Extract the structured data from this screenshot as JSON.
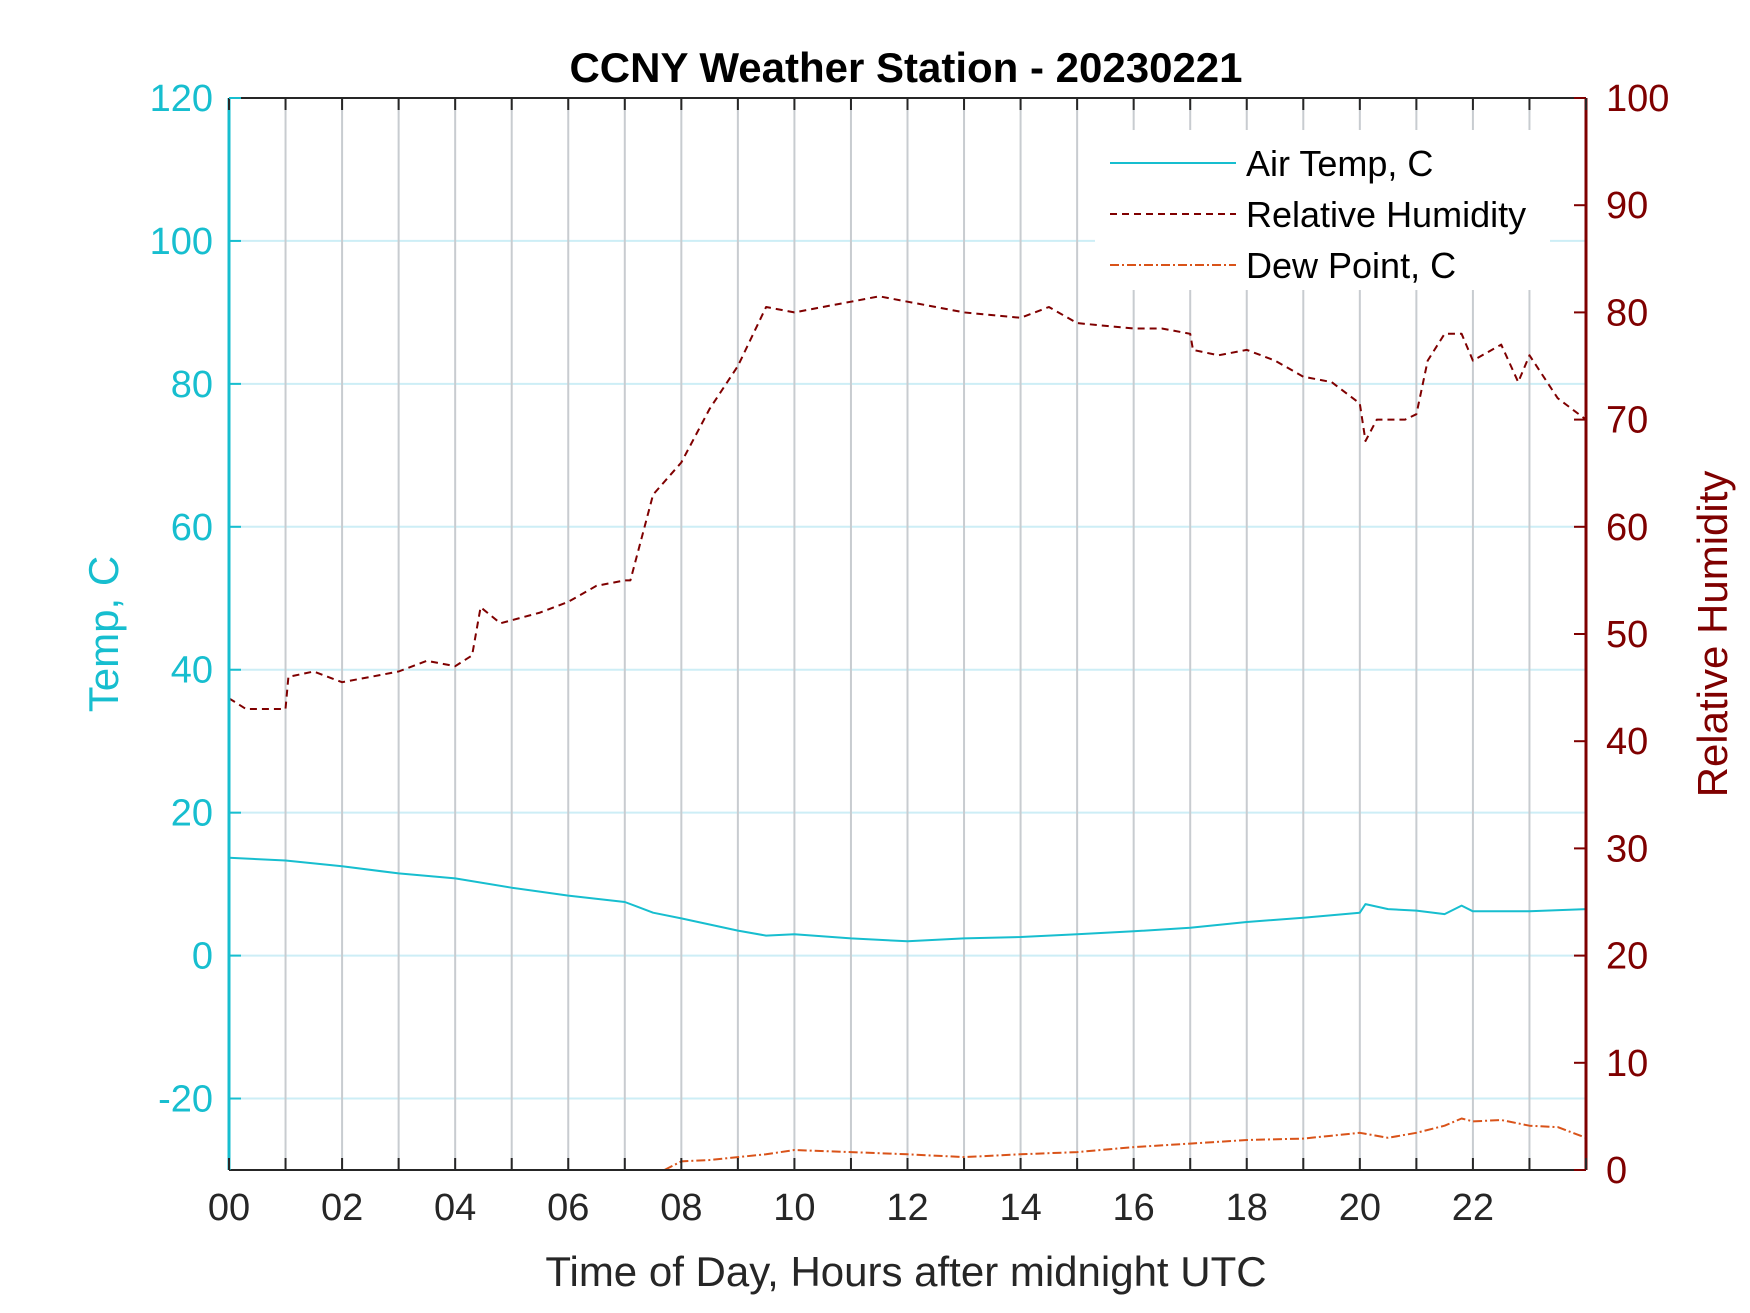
{
  "chart_data": {
    "type": "line",
    "title": "CCNY Weather Station - 20230221",
    "xlabel": "Time of Day, Hours after midnight UTC",
    "ylabel_left": "Temp, C",
    "ylabel_right": "Relative Humidity",
    "xlim": [
      0,
      24
    ],
    "ylim_left": [
      -30,
      120
    ],
    "ylim_right": [
      0,
      100
    ],
    "x_ticks": [
      0,
      2,
      4,
      6,
      8,
      10,
      12,
      14,
      16,
      18,
      20,
      22
    ],
    "x_tick_labels": [
      "00",
      "02",
      "04",
      "06",
      "08",
      "10",
      "12",
      "14",
      "16",
      "18",
      "20",
      "22"
    ],
    "y_left_ticks": [
      -20,
      0,
      20,
      40,
      60,
      80,
      100,
      120
    ],
    "y_left_tick_labels": [
      "-20",
      "0",
      "20",
      "40",
      "60",
      "80",
      "100",
      "120"
    ],
    "y_right_ticks": [
      0,
      10,
      20,
      30,
      40,
      50,
      60,
      70,
      80,
      90,
      100
    ],
    "y_right_tick_labels": [
      "0",
      "10",
      "20",
      "30",
      "40",
      "50",
      "60",
      "70",
      "80",
      "90",
      "100"
    ],
    "grid": "on",
    "legend_position": "top-right",
    "colors": {
      "air_temp": "#17becf",
      "humidity": "#7f0000",
      "dew_point": "#d95319",
      "left_axis": "#17becf",
      "right_axis": "#7f0000",
      "grid_vertical": "#c8ccd0",
      "grid_horizontal": "#cdeef6"
    },
    "series": [
      {
        "name": "Air Temp, C",
        "axis": "left",
        "style": "solid",
        "x": [
          0,
          1,
          2,
          3,
          4,
          5,
          6,
          7,
          7.5,
          8,
          9,
          9.5,
          10,
          11,
          12,
          13,
          14,
          15,
          16,
          17,
          18,
          19,
          20,
          20.1,
          20.5,
          21,
          21.5,
          21.8,
          22,
          23,
          24
        ],
        "y": [
          13.7,
          13.3,
          12.5,
          11.5,
          10.8,
          9.5,
          8.4,
          7.5,
          6.0,
          5.2,
          3.5,
          2.8,
          3.0,
          2.4,
          2.0,
          2.4,
          2.6,
          3.0,
          3.4,
          3.9,
          4.7,
          5.3,
          6.0,
          7.2,
          6.5,
          6.3,
          5.8,
          7.0,
          6.2,
          6.2,
          6.5
        ]
      },
      {
        "name": "Relative Humidity",
        "axis": "right",
        "style": "dashed",
        "x": [
          0,
          0.3,
          0.6,
          1,
          1.05,
          1.5,
          2,
          2.5,
          3,
          3.5,
          4,
          4.3,
          4.45,
          4.8,
          5.5,
          6,
          6.5,
          7,
          7.1,
          7.5,
          8,
          8.5,
          9,
          9.5,
          10,
          10.5,
          11,
          11.5,
          12,
          12.5,
          13,
          14,
          14.5,
          15,
          16,
          16.5,
          17,
          17.05,
          17.5,
          18,
          18.5,
          19,
          19.5,
          20,
          20.1,
          20.3,
          20.8,
          21,
          21.2,
          21.5,
          21.8,
          22,
          22.5,
          22.8,
          23,
          23.5,
          24
        ],
        "y": [
          44,
          43,
          43,
          43,
          46,
          46.5,
          45.5,
          46,
          46.5,
          47.5,
          47,
          48,
          52.5,
          51,
          52,
          53,
          54.5,
          55,
          55,
          63,
          66,
          71,
          75,
          80.5,
          80,
          80.5,
          81,
          81.5,
          81,
          80.5,
          80,
          79.5,
          80.5,
          79,
          78.5,
          78.5,
          78,
          76.5,
          76,
          76.5,
          75.5,
          74,
          73.5,
          71.5,
          68,
          70,
          70,
          70.5,
          75.5,
          78,
          78,
          75.5,
          77,
          73.5,
          76,
          72,
          70
        ]
      },
      {
        "name": "Dew Point, C",
        "axis": "left",
        "style": "dash-dot",
        "x": [
          7.7,
          8,
          8.5,
          9,
          9.5,
          10,
          11,
          12,
          13,
          14,
          15,
          16,
          17,
          18,
          19,
          20,
          20.5,
          21,
          21.5,
          21.8,
          22,
          22.5,
          23,
          23.5,
          24
        ],
        "y": [
          -30,
          -28.8,
          -28.6,
          -28.2,
          -27.8,
          -27.2,
          -27.5,
          -27.8,
          -28.2,
          -27.8,
          -27.5,
          -26.8,
          -26.3,
          -25.8,
          -25.6,
          -24.8,
          -25.5,
          -24.8,
          -23.8,
          -22.8,
          -23.2,
          -23.0,
          -23.8,
          -24.0,
          -25.5
        ]
      }
    ]
  }
}
